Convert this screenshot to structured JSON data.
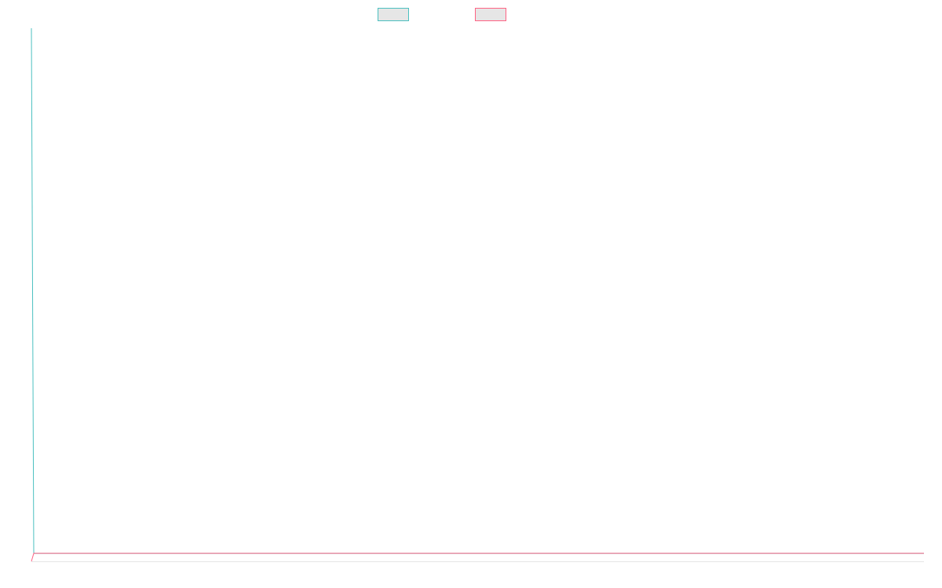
{
  "chart_data": {
    "type": "line",
    "title": "",
    "xlabel": "",
    "ylabel": "",
    "x": [
      0,
      1
    ],
    "series": [
      {
        "name": "",
        "color": "#4bc0c0",
        "values": [
          100,
          1.5
        ]
      },
      {
        "name": "",
        "color": "#ff6384",
        "values": [
          0,
          1.5
        ]
      }
    ],
    "ylim": [
      0,
      100
    ],
    "grid": false,
    "legend": {
      "placement": "top-center"
    },
    "tick_labels": {
      "x": [],
      "y": []
    }
  }
}
